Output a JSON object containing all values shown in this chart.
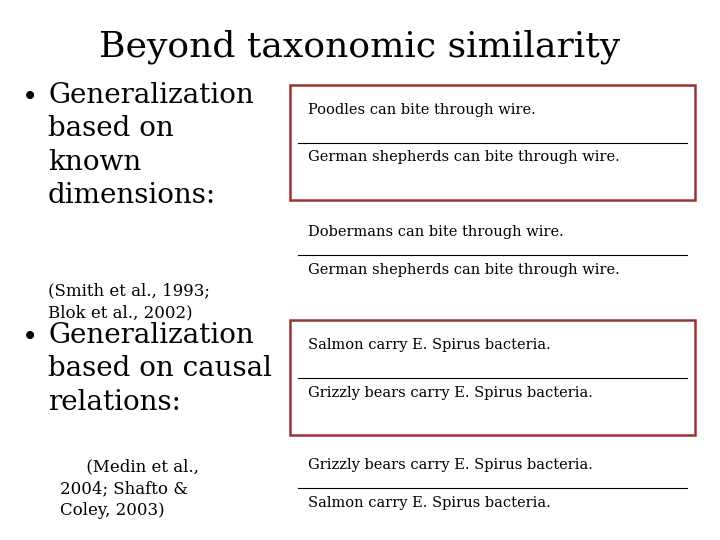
{
  "title": "Beyond taxonomic similarity",
  "title_fontsize": 26,
  "title_font": "serif",
  "background_color": "#ffffff",
  "bullet1_lines": [
    "Generalization",
    "based on",
    "known",
    "dimensions:"
  ],
  "bullet1_cite": "(Smith et al., 1993;\nBlok et al., 2002)",
  "bullet2_lines": [
    "Generalization",
    "based on causal",
    "relations:"
  ],
  "bullet2_cite": "     (Medin et al.,\n2004; Shafto &\nColey, 2003)",
  "box1_line1": "Poodles can bite through wire.",
  "box1_line2": "German shepherds can bite through wire.",
  "nobox1_line1": "Dobermans can bite through wire.",
  "nobox1_line2": "German shepherds can bite through wire.",
  "box2_line1": "Salmon carry E. Spirus bacteria.",
  "box2_line2": "Grizzly bears carry E. Spirus bacteria.",
  "nobox2_line1": "Grizzly bears carry E. Spirus bacteria.",
  "nobox2_line2": "Salmon carry E. Spirus bacteria.",
  "box_edge_color": "#993333",
  "box_face_color": "#ffffff",
  "text_color": "#000000",
  "line_color": "#000000",
  "body_fontsize": 10.5,
  "bullet_fontsize": 20,
  "cite_fontsize": 12
}
